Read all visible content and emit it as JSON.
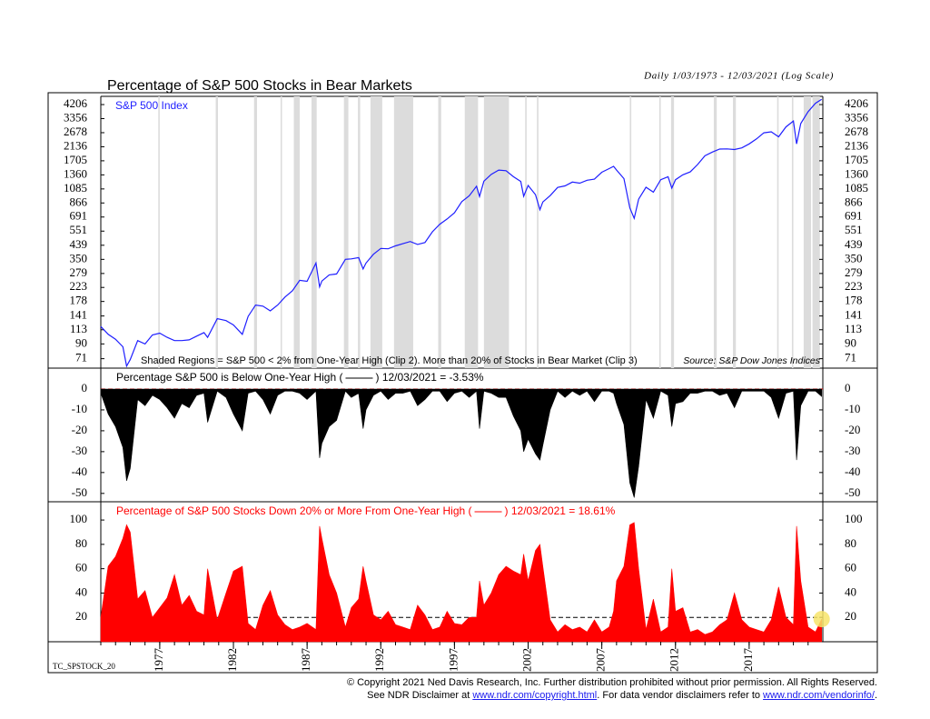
{
  "chart_data": [
    {
      "type": "line",
      "title": "Percentage of S&P 500 Stocks in Bear Markets",
      "subtitle": "Daily 1/03/1973 - 12/03/2021 (Log Scale)",
      "annotation": "Shaded Regions = S&P 500 < 2% from One-Year High (Clip 2). More than 20% of Stocks in Bear Market (Clip 3)",
      "source": "Source: S&P Dow Jones Indices",
      "log_scale": true,
      "x": [
        1973.0,
        1973.5,
        1974.0,
        1974.5,
        1974.75,
        1975.0,
        1975.5,
        1976.0,
        1976.5,
        1977.0,
        1977.5,
        1978.0,
        1978.5,
        1979.0,
        1979.5,
        1980.0,
        1980.25,
        1980.9,
        1981.5,
        1982.0,
        1982.6,
        1983.0,
        1983.5,
        1984.0,
        1984.5,
        1985.0,
        1985.5,
        1986.0,
        1986.5,
        1987.0,
        1987.6,
        1987.85,
        1988.0,
        1988.5,
        1989.0,
        1989.6,
        1990.0,
        1990.5,
        1990.8,
        1991.0,
        1991.5,
        1992.0,
        1992.5,
        1993.0,
        1993.5,
        1994.0,
        1994.5,
        1995.0,
        1995.5,
        1996.0,
        1996.5,
        1997.0,
        1997.5,
        1998.0,
        1998.5,
        1998.7,
        1999.0,
        1999.5,
        2000.0,
        2000.5,
        2001.0,
        2001.5,
        2001.7,
        2002.0,
        2002.5,
        2002.8,
        2003.0,
        2003.5,
        2004.0,
        2004.5,
        2005.0,
        2005.5,
        2006.0,
        2006.5,
        2007.0,
        2007.5,
        2007.8,
        2008.0,
        2008.5,
        2008.9,
        2009.2,
        2009.5,
        2010.0,
        2010.5,
        2011.0,
        2011.5,
        2011.75,
        2012.0,
        2012.5,
        2013.0,
        2013.5,
        2014.0,
        2014.5,
        2015.0,
        2015.5,
        2016.0,
        2016.5,
        2017.0,
        2017.5,
        2018.0,
        2018.5,
        2019.0,
        2019.5,
        2020.0,
        2020.22,
        2020.5,
        2021.0,
        2021.5,
        2021.92
      ],
      "series": [
        {
          "name": "S&P 500 Index",
          "color": "#1f1fff",
          "values": [
            119,
            105,
            97,
            86,
            63,
            70,
            95,
            90,
            104,
            107,
            100,
            95,
            95,
            96,
            102,
            108,
            100,
            135,
            131,
            122,
            105,
            140,
            168,
            165,
            153,
            168,
            191,
            211,
            250,
            246,
            330,
            225,
            247,
            273,
            277,
            350,
            353,
            360,
            300,
            330,
            380,
            417,
            415,
            435,
            450,
            466,
            445,
            459,
            545,
            615,
            670,
            740,
            885,
            970,
            1133,
            960,
            1229,
            1372,
            1469,
            1455,
            1320,
            1224,
            965,
            1148,
            990,
            777,
            880,
            975,
            1112,
            1140,
            1212,
            1191,
            1248,
            1270,
            1418,
            1503,
            1560,
            1468,
            1280,
            800,
            677,
            920,
            1115,
            1030,
            1258,
            1320,
            1100,
            1258,
            1362,
            1426,
            1606,
            1848,
            1960,
            2058,
            2063,
            2044,
            2098,
            2238,
            2423,
            2673,
            2718,
            2506,
            2941,
            3230,
            2237,
            3100,
            3756,
            4297,
            4577
          ]
        }
      ],
      "shaded_regions": [
        [
          1976.9,
          1977.0
        ],
        [
          1980.8,
          1980.95
        ],
        [
          1983.4,
          1983.6
        ],
        [
          1985.2,
          1985.3
        ],
        [
          1986.1,
          1986.5
        ],
        [
          1987.3,
          1987.65
        ],
        [
          1989.5,
          1989.8
        ],
        [
          1990.45,
          1990.6
        ],
        [
          1991.3,
          1992.1
        ],
        [
          1992.9,
          1994.2
        ],
        [
          1995.9,
          1996.1
        ],
        [
          1997.7,
          1998.6
        ],
        [
          1999.0,
          2000.7
        ],
        [
          2001.8,
          2001.9
        ],
        [
          2002.6,
          2002.7
        ],
        [
          2008.9,
          2009.0
        ],
        [
          2010.9,
          2011.0
        ],
        [
          2011.7,
          2011.9
        ],
        [
          2014.6,
          2014.8
        ],
        [
          2015.9,
          2016.1
        ],
        [
          2018.9,
          2019.0
        ],
        [
          2019.9,
          2020.0
        ],
        [
          2020.7,
          2021.2
        ],
        [
          2021.3,
          2021.8
        ]
      ],
      "shade_color": "#dcdcdc",
      "xlim": [
        1973,
        2022
      ],
      "ylim": [
        61,
        4800
      ],
      "yticks": [
        71,
        90,
        113,
        141,
        178,
        223,
        279,
        350,
        439,
        551,
        691,
        866,
        1085,
        1360,
        1705,
        2136,
        2678,
        3356,
        4206
      ]
    },
    {
      "type": "area",
      "title": "Percentage S&P 500 is Below One-Year High (",
      "title_end": ") 12/03/2021 = -3.53%",
      "x": [
        1973.0,
        1973.5,
        1974.0,
        1974.5,
        1974.75,
        1975.0,
        1975.5,
        1976.0,
        1976.5,
        1977.0,
        1977.5,
        1978.0,
        1978.5,
        1979.0,
        1979.5,
        1980.0,
        1980.25,
        1980.9,
        1981.5,
        1982.0,
        1982.6,
        1983.0,
        1983.5,
        1984.0,
        1984.5,
        1985.0,
        1985.5,
        1986.0,
        1986.5,
        1987.0,
        1987.6,
        1987.85,
        1988.0,
        1988.5,
        1989.0,
        1989.6,
        1990.0,
        1990.5,
        1990.8,
        1991.0,
        1991.5,
        1992.0,
        1992.5,
        1993.0,
        1993.5,
        1994.0,
        1994.5,
        1995.0,
        1995.5,
        1996.0,
        1996.5,
        1997.0,
        1997.5,
        1998.0,
        1998.5,
        1998.7,
        1999.0,
        1999.5,
        2000.0,
        2000.5,
        2001.0,
        2001.5,
        2001.7,
        2002.0,
        2002.5,
        2002.8,
        2003.0,
        2003.5,
        2004.0,
        2004.5,
        2005.0,
        2005.5,
        2006.0,
        2006.5,
        2007.0,
        2007.5,
        2007.8,
        2008.0,
        2008.5,
        2008.9,
        2009.2,
        2009.5,
        2010.0,
        2010.5,
        2011.0,
        2011.5,
        2011.75,
        2012.0,
        2012.5,
        2013.0,
        2013.5,
        2014.0,
        2014.5,
        2015.0,
        2015.5,
        2016.0,
        2016.5,
        2017.0,
        2017.5,
        2018.0,
        2018.5,
        2019.0,
        2019.5,
        2020.0,
        2020.22,
        2020.5,
        2021.0,
        2021.5,
        2021.92
      ],
      "series": [
        {
          "color": "#000000",
          "values": [
            -2,
            -12,
            -18,
            -28,
            -44,
            -38,
            -5,
            -8,
            -3,
            -5,
            -9,
            -14,
            -7,
            -9,
            -3,
            -2,
            -16,
            -1,
            -4,
            -12,
            -20,
            -2,
            -1,
            -5,
            -12,
            -3,
            -1,
            -1,
            -2,
            -5,
            -1,
            -33,
            -26,
            -18,
            -15,
            -1,
            -4,
            -2,
            -19,
            -10,
            -3,
            -1,
            -5,
            -2,
            -2,
            -1,
            -8,
            -5,
            -1,
            -1,
            -6,
            -2,
            -1,
            -4,
            -1,
            -19,
            -1,
            -2,
            -4,
            -4,
            -13,
            -20,
            -30,
            -24,
            -31,
            -34,
            -27,
            -10,
            -1,
            -4,
            -1,
            -3,
            -1,
            -6,
            -1,
            -1,
            -2,
            -7,
            -17,
            -45,
            -52,
            -37,
            -5,
            -14,
            -1,
            -3,
            -18,
            -7,
            -6,
            -2,
            -2,
            -1,
            -1,
            -3,
            -2,
            -9,
            -1,
            -1,
            -1,
            -1,
            -4,
            -14,
            -2,
            -1,
            -34,
            -8,
            -1,
            -1,
            -3.53
          ]
        }
      ],
      "reference_line": 0,
      "reference_color": "#ff0000",
      "xlim": [
        1973,
        2022
      ],
      "ylim": [
        -54,
        10
      ],
      "yticks": [
        0,
        -10,
        -20,
        -30,
        -40,
        -50
      ]
    },
    {
      "type": "area",
      "title": "Percentage of S&P 500 Stocks Down 20% or More From One-Year High (",
      "title_end": ") 12/03/2021 = 18.61%",
      "x": [
        1973.0,
        1973.5,
        1974.0,
        1974.5,
        1974.75,
        1975.0,
        1975.5,
        1976.0,
        1976.5,
        1977.0,
        1977.5,
        1978.0,
        1978.5,
        1979.0,
        1979.5,
        1980.0,
        1980.25,
        1980.9,
        1981.5,
        1982.0,
        1982.6,
        1983.0,
        1983.5,
        1984.0,
        1984.5,
        1985.0,
        1985.5,
        1986.0,
        1986.5,
        1987.0,
        1987.6,
        1987.85,
        1988.0,
        1988.5,
        1989.0,
        1989.6,
        1990.0,
        1990.5,
        1990.8,
        1991.0,
        1991.5,
        1992.0,
        1992.5,
        1993.0,
        1993.5,
        1994.0,
        1994.5,
        1995.0,
        1995.5,
        1996.0,
        1996.5,
        1997.0,
        1997.5,
        1998.0,
        1998.5,
        1998.7,
        1999.0,
        1999.5,
        2000.0,
        2000.5,
        2001.0,
        2001.5,
        2001.7,
        2002.0,
        2002.5,
        2002.8,
        2003.0,
        2003.5,
        2004.0,
        2004.5,
        2005.0,
        2005.5,
        2006.0,
        2006.5,
        2007.0,
        2007.5,
        2007.8,
        2008.0,
        2008.5,
        2008.9,
        2009.2,
        2009.5,
        2010.0,
        2010.5,
        2011.0,
        2011.5,
        2011.75,
        2012.0,
        2012.5,
        2013.0,
        2013.5,
        2014.0,
        2014.5,
        2015.0,
        2015.5,
        2016.0,
        2016.5,
        2017.0,
        2017.5,
        2018.0,
        2018.5,
        2019.0,
        2019.5,
        2020.0,
        2020.22,
        2020.5,
        2021.0,
        2021.5,
        2021.92
      ],
      "series": [
        {
          "color": "#ff0000",
          "values": [
            20,
            62,
            70,
            85,
            96,
            90,
            35,
            42,
            20,
            28,
            36,
            55,
            30,
            38,
            25,
            22,
            60,
            18,
            40,
            58,
            62,
            15,
            10,
            30,
            42,
            22,
            14,
            10,
            12,
            15,
            10,
            95,
            85,
            55,
            40,
            12,
            28,
            35,
            62,
            50,
            22,
            18,
            25,
            14,
            12,
            10,
            30,
            22,
            10,
            12,
            25,
            15,
            14,
            20,
            20,
            50,
            30,
            40,
            55,
            62,
            58,
            55,
            72,
            50,
            75,
            80,
            62,
            18,
            8,
            14,
            10,
            12,
            8,
            18,
            8,
            12,
            25,
            50,
            62,
            96,
            98,
            60,
            10,
            35,
            8,
            12,
            60,
            25,
            28,
            8,
            10,
            6,
            8,
            14,
            18,
            40,
            18,
            12,
            10,
            8,
            18,
            45,
            20,
            14,
            95,
            50,
            12,
            8,
            18.61
          ]
        }
      ],
      "reference_line": 20,
      "reference_color": "#000000",
      "highlight_color": "#f7e46a",
      "xlim": [
        1973,
        2022
      ],
      "ylim": [
        0,
        115
      ],
      "yticks": [
        20,
        40,
        60,
        80,
        100
      ],
      "xticks": [
        1977,
        1982,
        1987,
        1992,
        1997,
        2002,
        2007,
        2012,
        2017
      ],
      "xticks_minor": [
        1973,
        1974,
        1975,
        1976,
        1977,
        1978,
        1979,
        1980,
        1981,
        1982,
        1983,
        1984,
        1985,
        1986,
        1987,
        1988,
        1989,
        1990,
        1991,
        1992,
        1993,
        1994,
        1995,
        1996,
        1997,
        1998,
        1999,
        2000,
        2001,
        2002,
        2003,
        2004,
        2005,
        2006,
        2007,
        2008,
        2009,
        2010,
        2011,
        2012,
        2013,
        2014,
        2015,
        2016,
        2017,
        2018,
        2019,
        2020,
        2021
      ]
    }
  ],
  "footer": {
    "code": "TC_SPSTOCK_20",
    "copyright": "© Copyright 2021 Ned Davis Research, Inc.  Further distribution prohibited without prior permission.  All Rights Reserved.",
    "disclaimer_start": "See NDR Disclaimer at ",
    "disclaimer_link": "www.ndr.com/copyright.html",
    "disclaimer_middle": ". For data vendor disclaimers refer to ",
    "vendor_link": "www.ndr.com/vendorinfo/",
    "disclaimer_end": "."
  }
}
